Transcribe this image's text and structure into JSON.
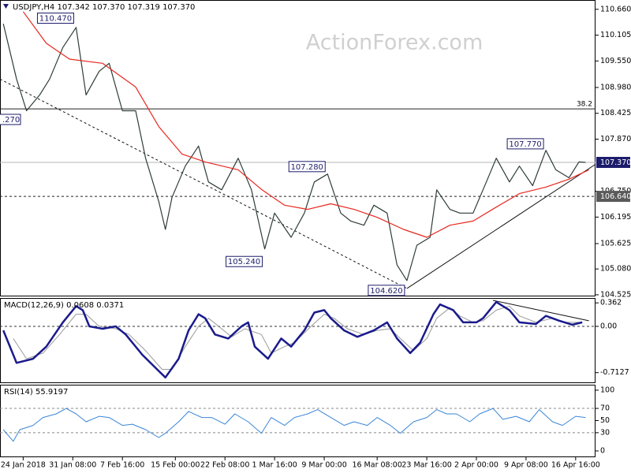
{
  "chart_data": [
    {
      "type": "line",
      "title": "USDJPY,H4  107.342 107.370 107.319 107.370",
      "watermark": "ActionForex.com",
      "xlim": [
        0,
        180
      ],
      "ylim": [
        104.49,
        110.86
      ],
      "yticks": [
        {
          "value": 110.66,
          "label": "110.660"
        },
        {
          "value": 110.105,
          "label": "110.105"
        },
        {
          "value": 109.55,
          "label": "109.550"
        },
        {
          "value": 108.98,
          "label": "108.980"
        },
        {
          "value": 108.425,
          "label": "108.425"
        },
        {
          "value": 107.87,
          "label": "107.870"
        },
        {
          "value": 106.75,
          "label": "106.750"
        },
        {
          "value": 106.195,
          "label": "106.195"
        },
        {
          "value": 105.625,
          "label": "105.625"
        },
        {
          "value": 105.08,
          "label": "105.080"
        },
        {
          "value": 104.525,
          "label": "104.525"
        }
      ],
      "series": [
        {
          "color": "#2e3d36",
          "width": 1.2,
          "x": [
            1,
            5,
            8,
            12,
            15,
            19,
            23,
            26,
            30,
            33,
            37,
            41,
            44,
            48,
            50,
            52,
            56,
            60,
            63,
            67,
            72,
            76,
            80,
            83,
            88,
            92,
            95,
            99,
            103,
            106,
            110,
            113,
            117,
            120,
            123,
            126,
            130,
            132,
            136,
            139,
            143,
            147,
            150,
            154,
            157,
            161,
            165,
            168,
            172,
            175,
            177
          ],
          "values": [
            110.35,
            109.16,
            108.48,
            108.82,
            109.16,
            109.84,
            110.27,
            108.82,
            109.33,
            109.5,
            108.48,
            108.48,
            107.46,
            106.53,
            105.93,
            106.62,
            107.29,
            107.72,
            106.95,
            106.78,
            107.46,
            106.78,
            105.51,
            106.28,
            105.76,
            106.28,
            106.95,
            107.12,
            106.28,
            106.11,
            106.02,
            106.45,
            106.28,
            105.17,
            104.83,
            105.59,
            105.76,
            106.78,
            106.36,
            106.28,
            106.28,
            106.95,
            107.46,
            106.95,
            107.29,
            106.87,
            107.63,
            107.21,
            107.04,
            107.38,
            107.37
          ]
        },
        {
          "color": "#e8271f",
          "width": 1.2,
          "x": [
            7,
            14,
            21,
            31,
            41,
            48,
            55,
            62,
            72,
            79,
            86,
            93,
            100,
            107,
            114,
            122,
            129,
            136,
            143,
            150,
            157,
            165,
            172,
            178
          ],
          "values": [
            110.61,
            109.93,
            109.59,
            109.5,
            108.99,
            108.14,
            107.55,
            107.38,
            107.21,
            106.79,
            106.45,
            106.36,
            106.48,
            106.36,
            106.19,
            105.93,
            105.76,
            106.02,
            106.11,
            106.41,
            106.7,
            106.84,
            107.01,
            107.21
          ]
        }
      ],
      "hlines": [
        {
          "value": 108.52,
          "label": "38.2",
          "dash": false,
          "color": "#222"
        },
        {
          "value": 107.37,
          "tag": "107.370",
          "dash": false,
          "color": "#b5b5b5",
          "tag_color": "#1c1c6b"
        },
        {
          "value": 106.64,
          "tag": "106.640",
          "dash": true,
          "color": "#222",
          "tag_color": "#5a5a5a"
        }
      ],
      "trend_lines": [
        {
          "x": [
            0,
            123
          ],
          "values": [
            109.16,
            104.66
          ],
          "dash": true
        },
        {
          "x": [
            123,
            180
          ],
          "values": [
            104.66,
            107.33
          ],
          "dash": false
        }
      ],
      "price_labels": [
        {
          "x": 23,
          "value": 110.47,
          "label": "110.470"
        },
        {
          "x": 99,
          "value": 107.28,
          "label": "107.280"
        },
        {
          "x": 80,
          "value": 105.24,
          "label": "105.240"
        },
        {
          "x": 123,
          "value": 104.62,
          "label": "104.620"
        },
        {
          "x": 165,
          "value": 107.77,
          "label": "107.770"
        }
      ],
      "annotations": [
        ".270"
      ]
    },
    {
      "type": "line",
      "title": "MACD(12,26,9) 0.0608 0.0371",
      "xlim": [
        0,
        180
      ],
      "ylim": [
        -0.874,
        0.437
      ],
      "yticks": [
        0.362,
        {
          "value": 0,
          "label": "0.00"
        },
        -0.7127
      ],
      "series": [
        {
          "color": "#9a9a9a",
          "width": 1,
          "x": [
            4,
            8,
            13,
            18,
            23,
            26,
            30,
            35,
            39,
            44,
            49,
            52,
            56,
            60,
            63,
            67,
            70,
            74,
            79,
            82,
            86,
            89,
            94,
            98,
            101,
            105,
            110,
            114,
            118,
            121,
            125,
            129,
            132,
            136,
            139,
            143,
            146,
            150,
            154,
            157,
            162,
            167,
            171,
            176
          ],
          "values": [
            -0.187,
            -0.499,
            -0.412,
            -0.125,
            0.187,
            0.187,
            0,
            -0.037,
            -0.125,
            -0.375,
            -0.662,
            -0.662,
            -0.312,
            0,
            0.125,
            -0.037,
            -0.162,
            -0.037,
            -0.125,
            -0.412,
            -0.312,
            -0.25,
            0,
            0.187,
            0.125,
            -0.037,
            -0.125,
            -0.062,
            -0.037,
            -0.187,
            -0.375,
            -0.187,
            0.125,
            0.287,
            0.162,
            0.062,
            0.087,
            0.25,
            0.312,
            0.162,
            0.062,
            0.125,
            0.062,
            0.062
          ]
        },
        {
          "color": "#1a1a8c",
          "width": 2.5,
          "x": [
            1,
            5,
            10,
            14,
            19,
            23,
            25,
            27,
            31,
            35,
            38,
            43,
            48,
            50,
            54,
            57,
            60,
            62,
            65,
            69,
            73,
            75,
            77,
            81,
            85,
            88,
            92,
            95,
            98,
            100,
            104,
            108,
            113,
            117,
            120,
            124,
            127,
            131,
            133,
            137,
            140,
            144,
            146,
            150,
            154,
            157,
            162,
            165,
            169,
            173,
            176
          ],
          "values": [
            -0.062,
            -0.562,
            -0.499,
            -0.312,
            0.062,
            0.312,
            0.25,
            0,
            -0.037,
            0,
            -0.125,
            -0.437,
            -0.687,
            -0.787,
            -0.499,
            -0.062,
            0.187,
            0.125,
            -0.125,
            -0.187,
            0,
            0.062,
            -0.312,
            -0.499,
            -0.187,
            -0.312,
            -0.062,
            0.212,
            0.25,
            0.125,
            -0.062,
            -0.162,
            -0.062,
            0.062,
            -0.187,
            -0.412,
            -0.25,
            0.187,
            0.337,
            0.25,
            0.062,
            0.062,
            0.125,
            0.375,
            0.25,
            0.062,
            0.037,
            0.162,
            0.087,
            0.025,
            0.062
          ]
        }
      ],
      "hlines": [
        {
          "value": 0,
          "dash": true,
          "color": "#333"
        }
      ],
      "trend_lines": [
        {
          "x": [
            149,
            178
          ],
          "values": [
            0.4,
            0.087
          ],
          "dash": false
        }
      ]
    },
    {
      "type": "line",
      "title": "RSI(14) 55.9197",
      "xlim": [
        0,
        180
      ],
      "ylim": [
        -10.4,
        109
      ],
      "yticks": [
        100,
        70,
        50,
        30,
        0
      ],
      "series": [
        {
          "color": "#3a86d6",
          "width": 1,
          "x": [
            1,
            4,
            6,
            10,
            13,
            17,
            20,
            23,
            26,
            30,
            33,
            37,
            40,
            44,
            48,
            50,
            54,
            57,
            61,
            64,
            68,
            71,
            75,
            79,
            82,
            86,
            89,
            93,
            96,
            100,
            104,
            107,
            111,
            114,
            118,
            121,
            125,
            129,
            132,
            135,
            138,
            142,
            145,
            149,
            152,
            156,
            160,
            163,
            167,
            170,
            174,
            177
          ],
          "values": [
            35,
            16,
            35,
            42,
            55,
            61,
            70,
            61,
            48,
            57,
            55,
            42,
            44,
            35,
            22,
            29,
            48,
            65,
            55,
            55,
            44,
            61,
            48,
            29,
            55,
            42,
            55,
            61,
            68,
            55,
            42,
            48,
            42,
            55,
            42,
            29,
            48,
            55,
            68,
            61,
            61,
            48,
            61,
            70,
            52,
            57,
            48,
            68,
            48,
            42,
            57,
            55
          ]
        }
      ],
      "hlines": [
        {
          "value": 70,
          "dash": true,
          "color": "#888"
        },
        {
          "value": 30,
          "dash": true,
          "color": "#888"
        }
      ],
      "xticks": [
        {
          "value": 7,
          "label": "24 Jan 2018"
        },
        {
          "value": 22,
          "label": "31 Jan 08:00"
        },
        {
          "value": 37,
          "label": "7 Feb 16:00"
        },
        {
          "value": 53,
          "label": "15 Feb 00:00"
        },
        {
          "value": 68,
          "label": "22 Feb 08:00"
        },
        {
          "value": 83,
          "label": "1 Mar 16:00"
        },
        {
          "value": 98,
          "label": "9 Mar 00:00"
        },
        {
          "value": 114,
          "label": "16 Mar 08:00"
        },
        {
          "value": 129,
          "label": "23 Mar 16:00"
        },
        {
          "value": 144,
          "label": "2 Apr 00:00"
        },
        {
          "value": 159,
          "label": "9 Apr 08:00"
        },
        {
          "value": 174,
          "label": "16 Apr 16:00"
        }
      ]
    }
  ]
}
